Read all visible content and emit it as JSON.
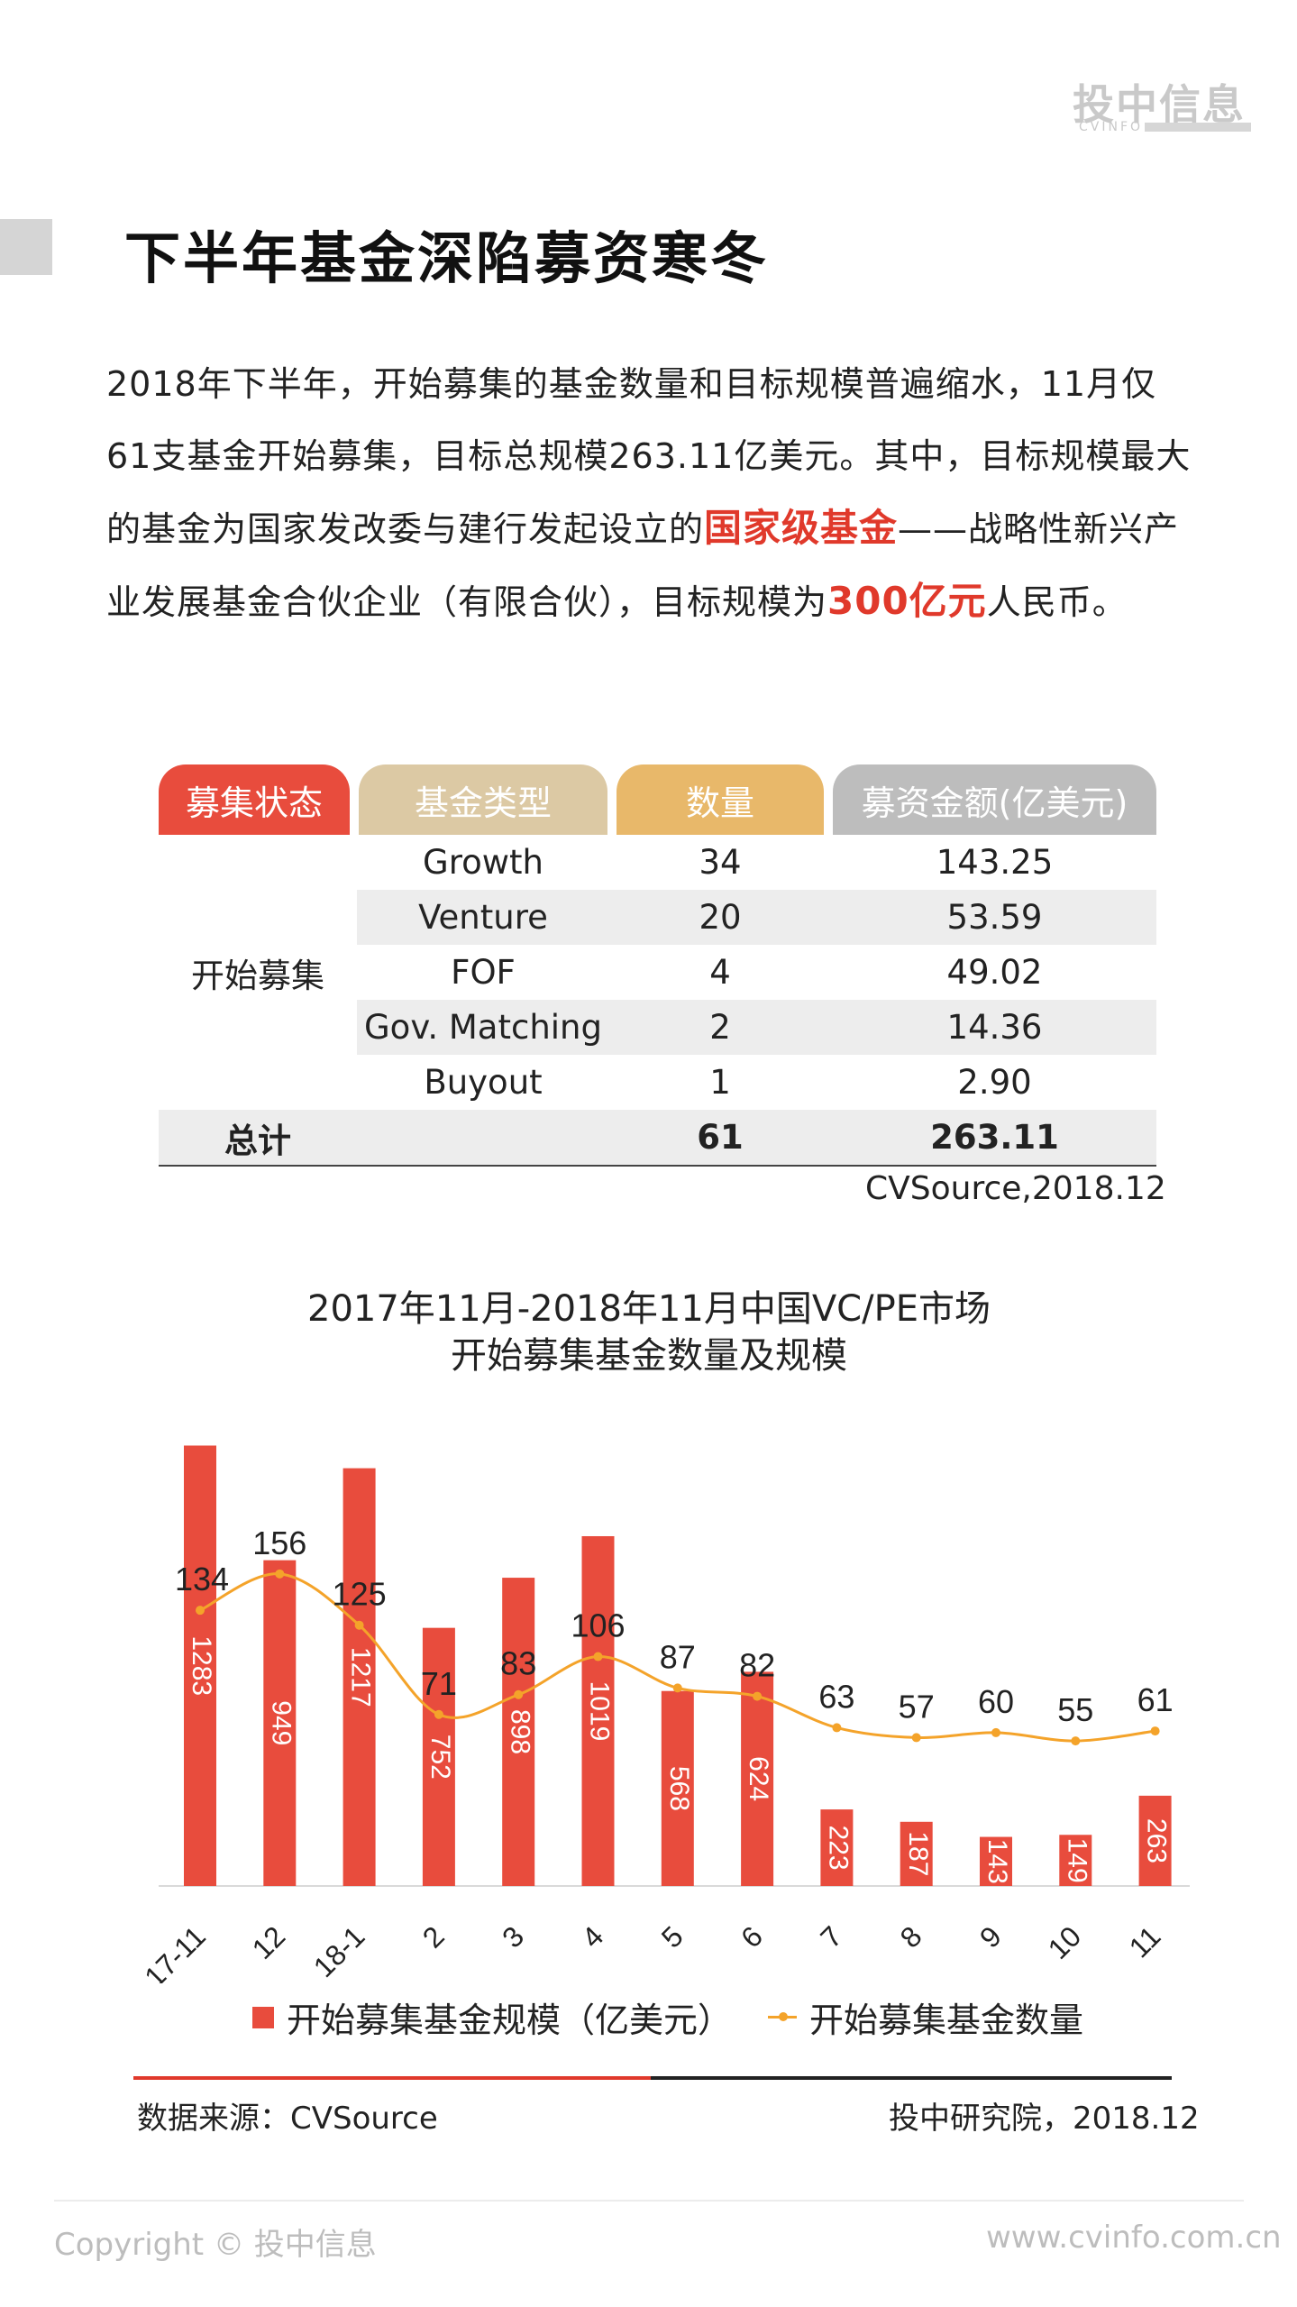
{
  "header": {
    "logo_cn": "投中信息",
    "logo_en": "CVINFO"
  },
  "title": "下半年基金深陷募资寒冬",
  "paragraph": {
    "part1": "2018年下半年，开始募集的基金数量和目标规模普遍缩水，11月仅61支基金开始募集，目标总规模263.11亿美元。其中，目标规模最大的基金为国家发改委与建行发起设立的",
    "highlight1": "国家级基金",
    "part2": "——战略性新兴产业发展基金合伙企业（有限合伙），目标规模为",
    "highlight2": "300亿元",
    "part3": "人民币。"
  },
  "table": {
    "headers": [
      "募集状态",
      "基金类型",
      "数量",
      "募资金额(亿美元)"
    ],
    "header_colors": [
      "#e84c3d",
      "#dcc9a4",
      "#e8b86a",
      "#bdbdbd"
    ],
    "group_label": "开始募集",
    "rows": [
      {
        "type": "Growth",
        "count": "34",
        "amount": "143.25"
      },
      {
        "type": "Venture",
        "count": "20",
        "amount": "53.59"
      },
      {
        "type": "FOF",
        "count": "4",
        "amount": "49.02"
      },
      {
        "type": "Gov. Matching",
        "count": "2",
        "amount": "14.36"
      },
      {
        "type": "Buyout",
        "count": "1",
        "amount": "2.90"
      }
    ],
    "total": {
      "label": "总计",
      "count": "61",
      "amount": "263.11"
    },
    "source": "CVSource,2018.12"
  },
  "chart_data": {
    "type": "bar",
    "title_line1": "2017年11月-2018年11月中国VC/PE市场",
    "title_line2": "开始募集基金数量及规模",
    "categories": [
      "17-11",
      "12",
      "18-1",
      "2",
      "3",
      "4",
      "5",
      "6",
      "7",
      "8",
      "9",
      "10",
      "11"
    ],
    "series": [
      {
        "name": "开始募集基金规模（亿美元）",
        "type": "bar",
        "color": "#e84c3d",
        "values": [
          1283,
          949,
          1217,
          752,
          898,
          1019,
          568,
          624,
          223,
          187,
          143,
          149,
          263
        ]
      },
      {
        "name": "开始募集基金数量",
        "type": "line",
        "color": "#f4a32a",
        "values": [
          134,
          156,
          125,
          71,
          83,
          106,
          87,
          82,
          63,
          57,
          60,
          55,
          61
        ]
      }
    ],
    "ylim_bar": [
      0,
      1300
    ],
    "ylim_line": [
      0,
      290
    ],
    "legend": "bottom",
    "grid": false
  },
  "chart_source": {
    "left": "数据来源：CVSource",
    "right": "投中研究院，2018.12"
  },
  "footer": {
    "copyright": "Copyright © 投中信息",
    "website": "www.cvinfo.com.cn"
  }
}
